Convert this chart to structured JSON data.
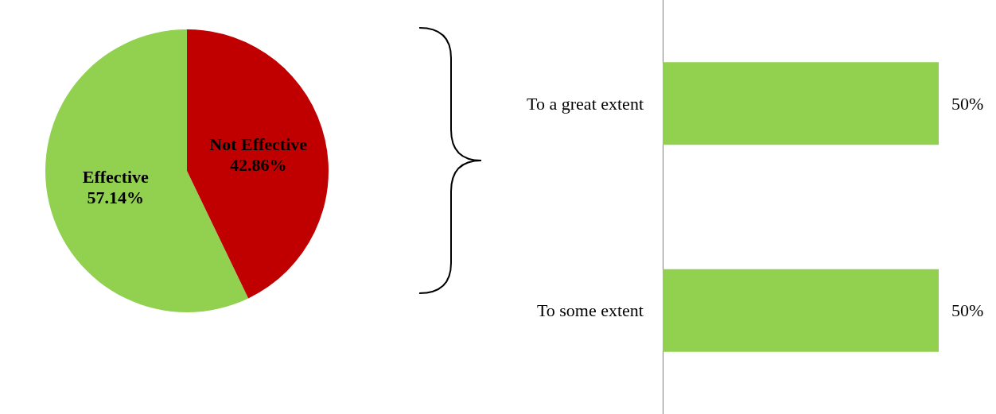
{
  "chart_data": [
    {
      "type": "pie",
      "categories": [
        "Effective",
        "Not Effective"
      ],
      "values": [
        57.14,
        42.86
      ],
      "colors": [
        "#92d050",
        "#c00000"
      ],
      "value_labels": [
        "57.14%",
        "42.86%"
      ],
      "legend": false
    },
    {
      "type": "bar",
      "orientation": "horizontal",
      "categories": [
        "To a great extent",
        "To some extent"
      ],
      "values": [
        50,
        50
      ],
      "color": "#92d050",
      "value_labels": [
        "50%",
        "50%"
      ],
      "legend": false
    }
  ]
}
